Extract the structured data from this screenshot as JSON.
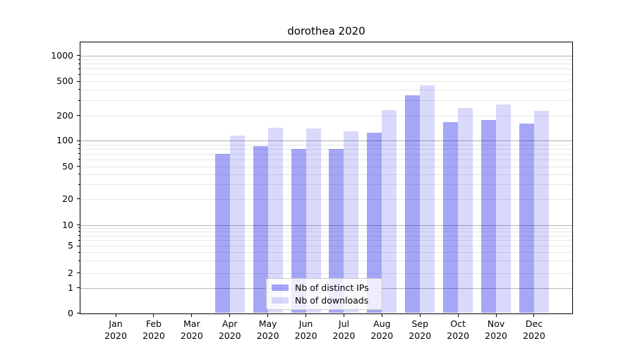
{
  "title": "dorothea 2020",
  "chart_data": {
    "type": "bar",
    "title": "dorothea 2020",
    "categories": [
      "Jan 2020",
      "Feb 2020",
      "Mar 2020",
      "Apr 2020",
      "May 2020",
      "Jun 2020",
      "Jul 2020",
      "Aug 2020",
      "Sep 2020",
      "Oct 2020",
      "Nov 2020",
      "Dec 2020"
    ],
    "series": [
      {
        "name": "Nb of distinct IPs",
        "color": "rgba(0,0,230,0.35)",
        "values": [
          0,
          0,
          0,
          70,
          86,
          79,
          80,
          124,
          343,
          166,
          176,
          160
        ]
      },
      {
        "name": "Nb of downloads",
        "color": "rgba(0,0,225,0.15)",
        "values": [
          0,
          0,
          0,
          115,
          142,
          139,
          129,
          230,
          450,
          244,
          268,
          226
        ]
      }
    ],
    "xlabel": "",
    "ylabel": "",
    "yscale": "symlog",
    "yticks": [
      0,
      1,
      2,
      5,
      10,
      20,
      50,
      100,
      200,
      500,
      1000
    ],
    "ylim": [
      0,
      1000
    ],
    "grid": true,
    "legend_position": "lower-center"
  },
  "colors": {
    "bar_distinct_ips_rendered": "#a6a6f6",
    "bar_downloads_rendered": "#d9d9fa",
    "grid_major": "#b3b3b3",
    "grid_minor": "#e7e7e7",
    "axis": "#000000",
    "legend_border": "#cccccc"
  }
}
